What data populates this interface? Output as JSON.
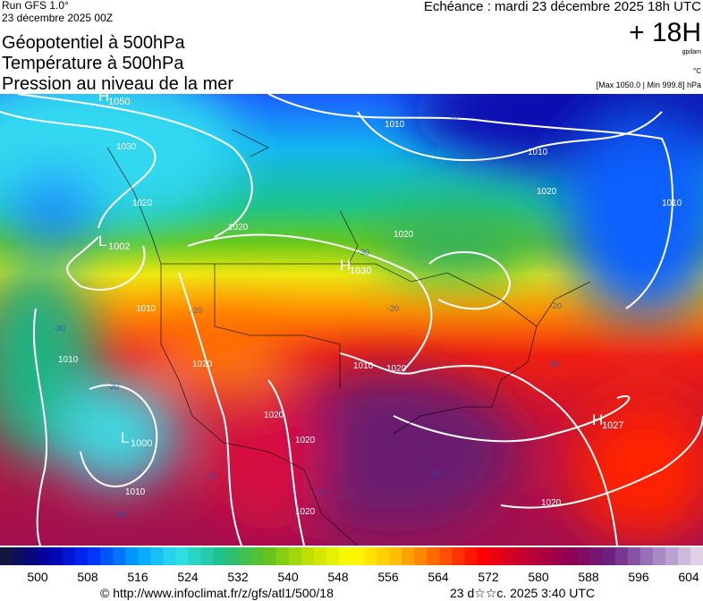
{
  "header": {
    "run": "Run GFS 1.0°",
    "run_date": "23 décembre 2025 00Z",
    "titles": [
      "Géopotentiel à 500hPa",
      "Température à 500hPa",
      "Pression au niveau de la mer"
    ],
    "echeance": "Echéance : mardi 23 décembre 2025 18h UTC",
    "lead": "+ 18H",
    "unit_geo": "gpdam",
    "unit_temp": "°C",
    "range": "[Max 1050.0 | Min 999.8] hPa"
  },
  "map": {
    "centers": [
      {
        "letter": "H",
        "value": "1050"
      },
      {
        "letter": "L",
        "value": "1002"
      },
      {
        "letter": "H",
        "value": "1030"
      },
      {
        "letter": "L",
        "value": "1000"
      },
      {
        "letter": "H",
        "value": "1027"
      }
    ],
    "isobar_labels": [
      "1030",
      "1020",
      "1020",
      "1010",
      "1010",
      "1010",
      "1020",
      "1010",
      "1010",
      "1020",
      "1010",
      "1020",
      "1020",
      "1020",
      "1020",
      "1020",
      "1020",
      "1010"
    ],
    "temp_labels": [
      "-40",
      "-30",
      "-20",
      "-20",
      "-20",
      "-20",
      "-20",
      "-30",
      "-30",
      "-10",
      "-10",
      "-10"
    ]
  },
  "colorbar": {
    "ticks": [
      "500",
      "508",
      "516",
      "524",
      "532",
      "540",
      "548",
      "556",
      "564",
      "572",
      "580",
      "588",
      "596",
      "604"
    ]
  },
  "footer": {
    "url": "© http://www.infoclimat.fr/z/gfs/atl1/500/18",
    "stamp": "23 d☆☆c. 2025  3:40 UTC"
  }
}
